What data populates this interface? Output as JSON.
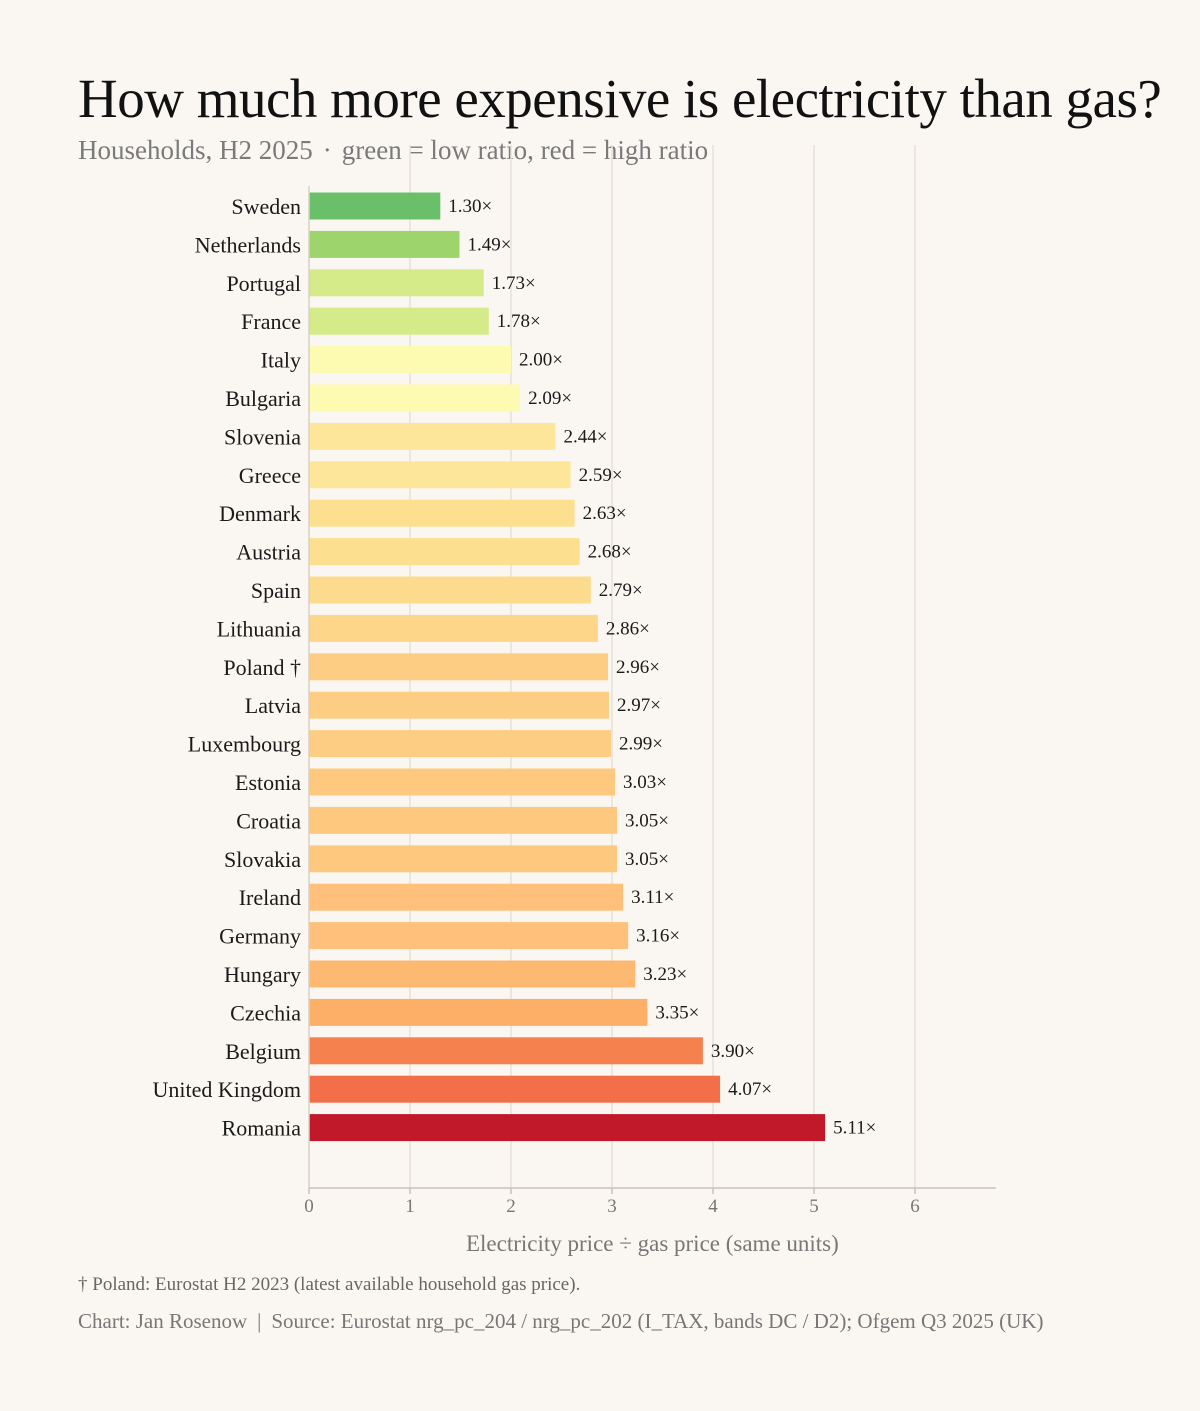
{
  "chart_data": {
    "type": "bar",
    "orientation": "horizontal",
    "title": "How much more expensive is electricity than gas?",
    "subtitle": {
      "scope": "Households, H2 2025",
      "separator": "·",
      "legend_note": "green = low ratio, red = high ratio"
    },
    "xlabel": "Electricity price ÷ gas price (same units)",
    "xlim": [
      0,
      6.8
    ],
    "xticks": [
      0,
      1,
      2,
      3,
      4,
      5,
      6
    ],
    "grid": true,
    "categories": [
      "Sweden",
      "Netherlands",
      "Portugal",
      "France",
      "Italy",
      "Bulgaria",
      "Slovenia",
      "Greece",
      "Denmark",
      "Austria",
      "Spain",
      "Lithuania",
      "Poland †",
      "Latvia",
      "Luxembourg",
      "Estonia",
      "Croatia",
      "Slovakia",
      "Ireland",
      "Germany",
      "Hungary",
      "Czechia",
      "Belgium",
      "United Kingdom",
      "Romania"
    ],
    "values": [
      1.3,
      1.49,
      1.73,
      1.78,
      2.0,
      2.09,
      2.44,
      2.59,
      2.63,
      2.68,
      2.79,
      2.86,
      2.96,
      2.97,
      2.99,
      3.03,
      3.05,
      3.05,
      3.11,
      3.16,
      3.23,
      3.35,
      3.9,
      4.07,
      5.11
    ],
    "value_labels": [
      "1.30×",
      "1.49×",
      "1.73×",
      "1.78×",
      "2.00×",
      "2.09×",
      "2.44×",
      "2.59×",
      "2.63×",
      "2.68×",
      "2.79×",
      "2.86×",
      "2.96×",
      "2.97×",
      "2.99×",
      "3.03×",
      "3.05×",
      "3.05×",
      "3.11×",
      "3.16×",
      "3.23×",
      "3.35×",
      "3.90×",
      "4.07×",
      "5.11×"
    ],
    "colors": [
      "#6abf69",
      "#9dd46b",
      "#d5ea88",
      "#d5ea88",
      "#fdfbb2",
      "#fdfbb2",
      "#fde69a",
      "#fde69a",
      "#fde08f",
      "#fde08f",
      "#fddb8d",
      "#fdd68a",
      "#fecd84",
      "#fecd84",
      "#fecd84",
      "#fec97f",
      "#fec97f",
      "#fec97f",
      "#fec07a",
      "#fec07a",
      "#fdb872",
      "#fdaf68",
      "#f5814f",
      "#f26f4a",
      "#c1192a"
    ]
  },
  "footnote": "† Poland: Eurostat H2 2023 (latest available household gas price).",
  "credits": {
    "chart": "Chart: Jan Rosenow",
    "separator": "|",
    "source": "Source: Eurostat nrg_pc_204 / nrg_pc_202 (I_TAX, bands DC / D2); Ofgem Q3 2025 (UK)"
  }
}
